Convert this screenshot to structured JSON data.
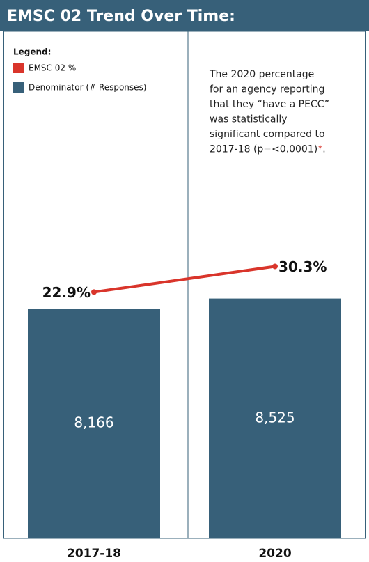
{
  "chart_data": {
    "type": "bar_line",
    "title": "EMSC 02 Trend Over Time:",
    "legend_title": "Legend:",
    "annotation": {
      "lines": [
        "The 2020 percentage",
        "for an agency reporting",
        "that they “have a PECC”",
        "was statistically",
        "significant compared to",
        "2017-18 (p=<0.0001)"
      ],
      "asterisk": "*",
      "end": "."
    },
    "categories": [
      "2017-18",
      "2020"
    ],
    "series": [
      {
        "name": "EMSC 02 %",
        "type": "line",
        "axis": "y2",
        "color": "#d9352b",
        "values": [
          22.9,
          30.3
        ],
        "value_labels": [
          "22.9%",
          "30.3%"
        ]
      },
      {
        "name": "Denominator (# Responses)",
        "type": "bar",
        "color": "#376079",
        "values": [
          8166,
          8525
        ],
        "value_labels": [
          "8,166",
          "8,525"
        ]
      }
    ],
    "ylim": [
      0,
      10000
    ],
    "y2lim": [
      -48,
      33
    ]
  }
}
